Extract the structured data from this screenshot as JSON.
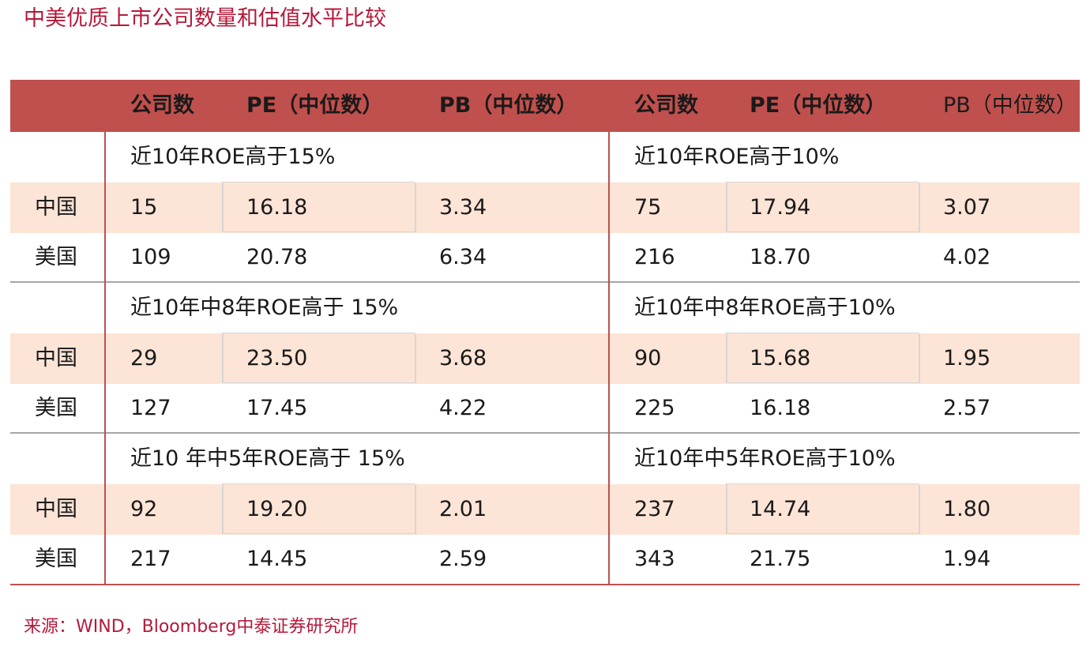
{
  "title": "中美优质上市公司数量和估值水平比较",
  "headers": [
    "公司数",
    "PE（中位数）",
    "PB（中位数）",
    "公司数",
    "PE（中位数）",
    "PB（中位数）"
  ],
  "sections": [
    {
      "left_title": "近10年ROE高于15%",
      "right_title": "近10年ROE高于10%",
      "rows": [
        {
          "label": "中国",
          "values": [
            "15",
            "16.18",
            "3.34",
            "75",
            "17.94",
            "3.07"
          ]
        },
        {
          "label": "美国",
          "values": [
            "109",
            "20.78",
            "6.34",
            "216",
            "18.70",
            "4.02"
          ]
        }
      ]
    },
    {
      "left_title": "近10年中8年ROE高于 15%",
      "right_title": "近10年中8年ROE高于10%",
      "rows": [
        {
          "label": "中国",
          "values": [
            "29",
            "23.50",
            "3.68",
            "90",
            "15.68",
            "1.95"
          ]
        },
        {
          "label": "美国",
          "values": [
            "127",
            "17.45",
            "4.22",
            "225",
            "16.18",
            "2.57"
          ]
        }
      ]
    },
    {
      "left_title": "近10 年中5年ROE高于 15%",
      "right_title": "近10年中5年ROE高于10%",
      "rows": [
        {
          "label": "中国",
          "values": [
            "92",
            "19.20",
            "2.01",
            "237",
            "14.74",
            "1.80"
          ]
        },
        {
          "label": "美国",
          "values": [
            "217",
            "14.45",
            "2.59",
            "343",
            "21.75",
            "1.94"
          ]
        }
      ]
    }
  ],
  "source": "来源：WIND，Bloomberg中泰证券研究所",
  "colors": {
    "header_bg": "#c0504d",
    "shade_row": "#fce4d6",
    "title_text": "#b5193a"
  }
}
